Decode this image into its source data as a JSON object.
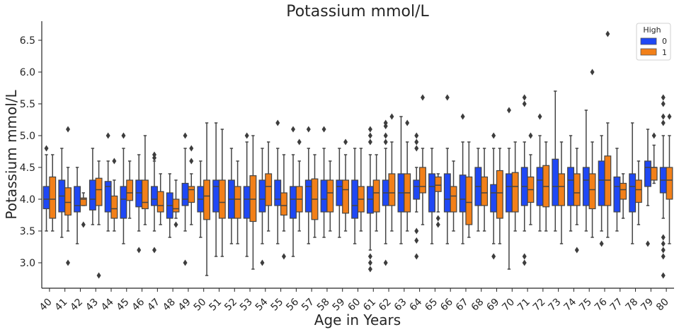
{
  "chart_data": {
    "type": "box",
    "title": "Potassium mmol/L",
    "xlabel": "Age in Years",
    "ylabel": "Potassium mmol/L",
    "ylim": [
      2.6,
      6.8
    ],
    "yticks": [
      3.0,
      3.5,
      4.0,
      4.5,
      5.0,
      5.5,
      6.0,
      6.5
    ],
    "ytick_labels": [
      "3.0",
      "3.5",
      "4.0",
      "4.5",
      "5.0",
      "5.5",
      "6.0",
      "6.5"
    ],
    "categories": [
      "40",
      "41",
      "42",
      "43",
      "44",
      "45",
      "46",
      "47",
      "48",
      "49",
      "50",
      "51",
      "52",
      "53",
      "54",
      "55",
      "56",
      "57",
      "58",
      "59",
      "60",
      "61",
      "62",
      "63",
      "64",
      "65",
      "66",
      "67",
      "68",
      "69",
      "70",
      "71",
      "72",
      "73",
      "74",
      "75",
      "76",
      "77",
      "78",
      "79",
      "80"
    ],
    "legend": {
      "title": "High",
      "position": "top-right"
    },
    "series": [
      {
        "name": "0",
        "color": "#1f48f5",
        "boxes": [
          {
            "q1": 3.85,
            "median": 4.0,
            "q3": 4.2,
            "whislo": 3.5,
            "whishi": 4.7,
            "fliers": [
              4.8
            ]
          },
          {
            "q1": 3.8,
            "median": 4.05,
            "q3": 4.3,
            "whislo": 3.4,
            "whishi": 4.8,
            "fliers": []
          },
          {
            "q1": 3.8,
            "median": 3.9,
            "q3": 4.2,
            "whislo": 3.3,
            "whishi": 4.5,
            "fliers": []
          },
          {
            "q1": 3.83,
            "median": 4.0,
            "q3": 4.3,
            "whislo": 3.6,
            "whishi": 4.8,
            "fliers": []
          },
          {
            "q1": 3.8,
            "median": 4.2,
            "q3": 4.28,
            "whislo": 3.5,
            "whishi": 4.6,
            "fliers": [
              5.0
            ]
          },
          {
            "q1": 3.7,
            "median": 4.0,
            "q3": 4.2,
            "whislo": 3.3,
            "whishi": 4.8,
            "fliers": [
              5.0
            ]
          },
          {
            "q1": 3.88,
            "median": 4.1,
            "q3": 4.3,
            "whislo": 3.5,
            "whishi": 4.7,
            "fliers": [
              3.2
            ]
          },
          {
            "q1": 3.9,
            "median": 4.0,
            "q3": 4.2,
            "whislo": 3.5,
            "whishi": 4.6,
            "fliers": [
              3.2,
              4.65,
              4.7
            ]
          },
          {
            "q1": 3.7,
            "median": 3.9,
            "q3": 4.1,
            "whislo": 3.4,
            "whishi": 4.4,
            "fliers": []
          },
          {
            "q1": 3.9,
            "median": 4.0,
            "q3": 4.25,
            "whislo": 3.5,
            "whishi": 4.8,
            "fliers": [
              3.0,
              5.0
            ]
          },
          {
            "q1": 3.8,
            "median": 4.0,
            "q3": 4.2,
            "whislo": 3.4,
            "whishi": 4.6,
            "fliers": []
          },
          {
            "q1": 3.8,
            "median": 4.2,
            "q3": 4.3,
            "whislo": 3.1,
            "whishi": 5.2,
            "fliers": []
          },
          {
            "q1": 3.7,
            "median": 4.0,
            "q3": 4.3,
            "whislo": 3.3,
            "whishi": 4.8,
            "fliers": []
          },
          {
            "q1": 3.7,
            "median": 4.0,
            "q3": 4.2,
            "whislo": 3.1,
            "whishi": 4.9,
            "fliers": [
              5.0
            ]
          },
          {
            "q1": 3.8,
            "median": 4.0,
            "q3": 4.3,
            "whislo": 3.3,
            "whishi": 4.8,
            "fliers": [
              3.0
            ]
          },
          {
            "q1": 3.9,
            "median": 4.0,
            "q3": 4.3,
            "whislo": 3.3,
            "whishi": 4.8,
            "fliers": [
              5.2
            ]
          },
          {
            "q1": 3.7,
            "median": 4.0,
            "q3": 4.2,
            "whislo": 3.1,
            "whishi": 4.7,
            "fliers": [
              5.1
            ]
          },
          {
            "q1": 3.8,
            "median": 4.2,
            "q3": 4.3,
            "whislo": 3.3,
            "whishi": 4.8,
            "fliers": [
              5.1
            ]
          },
          {
            "q1": 3.8,
            "median": 4.0,
            "q3": 4.3,
            "whislo": 3.4,
            "whishi": 4.8,
            "fliers": [
              5.1
            ]
          },
          {
            "q1": 3.9,
            "median": 4.2,
            "q3": 4.3,
            "whislo": 3.4,
            "whishi": 4.8,
            "fliers": []
          },
          {
            "q1": 3.7,
            "median": 3.9,
            "q3": 4.3,
            "whislo": 3.3,
            "whishi": 4.8,
            "fliers": []
          },
          {
            "q1": 3.78,
            "median": 4.0,
            "q3": 4.2,
            "whislo": 3.2,
            "whishi": 4.7,
            "fliers": [
              2.9,
              3.0,
              3.1,
              4.9,
              5.0,
              5.1
            ]
          },
          {
            "q1": 3.9,
            "median": 4.1,
            "q3": 4.3,
            "whislo": 3.3,
            "whishi": 4.8,
            "fliers": [
              3.0,
              4.9,
              5.0,
              5.15,
              5.2
            ]
          },
          {
            "q1": 3.8,
            "median": 4.1,
            "q3": 4.4,
            "whislo": 3.3,
            "whishi": 5.3,
            "fliers": []
          },
          {
            "q1": 4.0,
            "median": 4.2,
            "q3": 4.3,
            "whislo": 3.8,
            "whishi": 4.5,
            "fliers": [
              3.1,
              3.35,
              3.5,
              4.8,
              4.9,
              5.0
            ]
          },
          {
            "q1": 3.8,
            "median": 4.2,
            "q3": 4.4,
            "whislo": 3.3,
            "whishi": 4.8,
            "fliers": []
          },
          {
            "q1": 3.8,
            "median": 4.0,
            "q3": 4.4,
            "whislo": 3.3,
            "whishi": 4.8,
            "fliers": [
              5.6
            ]
          },
          {
            "q1": 3.8,
            "median": 4.0,
            "q3": 4.38,
            "whislo": 3.3,
            "whishi": 4.9,
            "fliers": [
              5.3
            ]
          },
          {
            "q1": 3.9,
            "median": 4.2,
            "q3": 4.5,
            "whislo": 3.5,
            "whishi": 4.8,
            "fliers": []
          },
          {
            "q1": 3.8,
            "median": 4.1,
            "q3": 4.23,
            "whislo": 3.3,
            "whishi": 4.8,
            "fliers": [
              3.1,
              5.0
            ]
          },
          {
            "q1": 3.8,
            "median": 4.2,
            "q3": 4.4,
            "whislo": 2.9,
            "whishi": 4.8,
            "fliers": [
              5.4
            ]
          },
          {
            "q1": 3.9,
            "median": 4.2,
            "q3": 4.5,
            "whislo": 3.5,
            "whishi": 4.9,
            "fliers": [
              3.0,
              3.1,
              5.5,
              5.6
            ]
          },
          {
            "q1": 3.9,
            "median": 4.3,
            "q3": 4.5,
            "whislo": 3.5,
            "whishi": 5.0,
            "fliers": [
              5.3
            ]
          },
          {
            "q1": 3.9,
            "median": 4.2,
            "q3": 4.63,
            "whislo": 3.5,
            "whishi": 5.7,
            "fliers": []
          },
          {
            "q1": 3.9,
            "median": 4.3,
            "q3": 4.5,
            "whislo": 3.5,
            "whishi": 5.0,
            "fliers": []
          },
          {
            "q1": 3.9,
            "median": 4.3,
            "q3": 4.5,
            "whislo": 3.5,
            "whishi": 5.4,
            "fliers": []
          },
          {
            "q1": 3.9,
            "median": 4.3,
            "q3": 4.6,
            "whislo": 3.5,
            "whishi": 5.0,
            "fliers": [
              3.3
            ]
          },
          {
            "q1": 3.8,
            "median": 4.2,
            "q3": 4.35,
            "whislo": 3.5,
            "whishi": 4.8,
            "fliers": []
          },
          {
            "q1": 3.8,
            "median": 4.2,
            "q3": 4.4,
            "whislo": 3.3,
            "whishi": 5.2,
            "fliers": []
          },
          {
            "q1": 4.2,
            "median": 4.5,
            "q3": 4.6,
            "whislo": 3.9,
            "whishi": 5.1,
            "fliers": [
              3.3
            ]
          },
          {
            "q1": 4.1,
            "median": 4.3,
            "q3": 4.5,
            "whislo": 3.7,
            "whishi": 5.0,
            "fliers": [
              2.8,
              3.1,
              3.2,
              3.3,
              3.4,
              5.2,
              5.3,
              5.5,
              5.6
            ]
          }
        ]
      },
      {
        "name": "1",
        "color": "#f28019",
        "boxes": [
          {
            "q1": 3.7,
            "median": 4.0,
            "q3": 4.35,
            "whislo": 3.5,
            "whishi": 4.7,
            "fliers": []
          },
          {
            "q1": 3.75,
            "median": 3.95,
            "q3": 4.18,
            "whislo": 3.5,
            "whishi": 4.5,
            "fliers": [
              3.0,
              5.1
            ]
          },
          {
            "q1": 3.9,
            "median": 4.0,
            "q3": 4.02,
            "whislo": 3.9,
            "whishi": 4.1,
            "fliers": [
              3.6
            ]
          },
          {
            "q1": 3.9,
            "median": 4.15,
            "q3": 4.33,
            "whislo": 3.6,
            "whishi": 4.6,
            "fliers": [
              2.8
            ]
          },
          {
            "q1": 3.7,
            "median": 3.85,
            "q3": 4.05,
            "whislo": 3.5,
            "whishi": 4.3,
            "fliers": [
              4.6
            ]
          },
          {
            "q1": 3.98,
            "median": 4.1,
            "q3": 4.3,
            "whislo": 3.7,
            "whishi": 4.6,
            "fliers": []
          },
          {
            "q1": 3.85,
            "median": 3.95,
            "q3": 4.3,
            "whislo": 3.6,
            "whishi": 5.0,
            "fliers": []
          },
          {
            "q1": 3.8,
            "median": 3.9,
            "q3": 4.12,
            "whislo": 3.6,
            "whishi": 4.4,
            "fliers": []
          },
          {
            "q1": 3.8,
            "median": 3.85,
            "q3": 4.0,
            "whislo": 3.7,
            "whishi": 4.3,
            "fliers": [
              3.6
            ]
          },
          {
            "q1": 3.95,
            "median": 4.15,
            "q3": 4.2,
            "whislo": 3.6,
            "whishi": 4.4,
            "fliers": [
              4.6,
              4.8
            ]
          },
          {
            "q1": 3.68,
            "median": 4.05,
            "q3": 4.3,
            "whislo": 2.8,
            "whishi": 5.2,
            "fliers": []
          },
          {
            "q1": 3.7,
            "median": 3.95,
            "q3": 4.3,
            "whislo": 3.1,
            "whishi": 5.1,
            "fliers": []
          },
          {
            "q1": 3.7,
            "median": 4.0,
            "q3": 4.2,
            "whislo": 3.3,
            "whishi": 4.6,
            "fliers": []
          },
          {
            "q1": 3.65,
            "median": 4.0,
            "q3": 4.37,
            "whislo": 2.9,
            "whishi": 5.0,
            "fliers": []
          },
          {
            "q1": 3.9,
            "median": 4.2,
            "q3": 4.4,
            "whislo": 3.5,
            "whishi": 4.9,
            "fliers": []
          },
          {
            "q1": 3.75,
            "median": 3.9,
            "q3": 4.1,
            "whislo": 3.5,
            "whishi": 4.7,
            "fliers": [
              3.1
            ]
          },
          {
            "q1": 3.8,
            "median": 4.0,
            "q3": 4.2,
            "whislo": 3.5,
            "whishi": 4.6,
            "fliers": [
              4.9
            ]
          },
          {
            "q1": 3.68,
            "median": 4.0,
            "q3": 4.32,
            "whislo": 3.4,
            "whishi": 4.7,
            "fliers": []
          },
          {
            "q1": 3.8,
            "median": 4.1,
            "q3": 4.3,
            "whislo": 3.5,
            "whishi": 4.6,
            "fliers": []
          },
          {
            "q1": 3.78,
            "median": 4.15,
            "q3": 4.3,
            "whislo": 3.5,
            "whishi": 4.7,
            "fliers": [
              4.9
            ]
          },
          {
            "q1": 3.8,
            "median": 4.0,
            "q3": 4.2,
            "whislo": 3.5,
            "whishi": 4.8,
            "fliers": []
          },
          {
            "q1": 3.8,
            "median": 4.1,
            "q3": 4.3,
            "whislo": 3.5,
            "whishi": 4.7,
            "fliers": []
          },
          {
            "q1": 3.9,
            "median": 4.1,
            "q3": 4.4,
            "whislo": 3.5,
            "whishi": 4.9,
            "fliers": [
              5.3
            ]
          },
          {
            "q1": 3.8,
            "median": 4.1,
            "q3": 4.4,
            "whislo": 3.5,
            "whishi": 4.9,
            "fliers": [
              5.2
            ]
          },
          {
            "q1": 4.1,
            "median": 4.2,
            "q3": 4.5,
            "whislo": 3.6,
            "whishi": 4.8,
            "fliers": [
              5.6
            ]
          },
          {
            "q1": 4.12,
            "median": 4.22,
            "q3": 4.35,
            "whislo": 3.8,
            "whishi": 4.4,
            "fliers": [
              3.6,
              3.7
            ]
          },
          {
            "q1": 3.8,
            "median": 4.05,
            "q3": 4.2,
            "whislo": 3.5,
            "whishi": 4.6,
            "fliers": []
          },
          {
            "q1": 3.6,
            "median": 3.95,
            "q3": 4.35,
            "whislo": 3.4,
            "whishi": 4.9,
            "fliers": []
          },
          {
            "q1": 3.9,
            "median": 4.1,
            "q3": 4.35,
            "whislo": 3.5,
            "whishi": 4.8,
            "fliers": []
          },
          {
            "q1": 3.7,
            "median": 4.1,
            "q3": 4.45,
            "whislo": 3.3,
            "whishi": 4.8,
            "fliers": []
          },
          {
            "q1": 3.8,
            "median": 4.2,
            "q3": 4.42,
            "whislo": 3.5,
            "whishi": 4.9,
            "fliers": []
          },
          {
            "q1": 3.95,
            "median": 4.15,
            "q3": 4.35,
            "whislo": 3.6,
            "whishi": 4.7,
            "fliers": [
              5.0
            ]
          },
          {
            "q1": 3.88,
            "median": 4.2,
            "q3": 4.53,
            "whislo": 3.5,
            "whishi": 4.9,
            "fliers": []
          },
          {
            "q1": 3.9,
            "median": 4.2,
            "q3": 4.4,
            "whislo": 3.3,
            "whishi": 4.9,
            "fliers": []
          },
          {
            "q1": 3.9,
            "median": 4.1,
            "q3": 4.4,
            "whislo": 3.6,
            "whishi": 4.8,
            "fliers": [
              3.2
            ]
          },
          {
            "q1": 3.85,
            "median": 4.15,
            "q3": 4.4,
            "whislo": 3.4,
            "whishi": 4.9,
            "fliers": [
              6.0
            ]
          },
          {
            "q1": 3.9,
            "median": 4.3,
            "q3": 4.68,
            "whislo": 3.4,
            "whishi": 5.2,
            "fliers": [
              6.6
            ]
          },
          {
            "q1": 4.0,
            "median": 4.15,
            "q3": 4.25,
            "whislo": 3.7,
            "whishi": 4.4,
            "fliers": []
          },
          {
            "q1": 3.95,
            "median": 4.15,
            "q3": 4.3,
            "whislo": 3.6,
            "whishi": 4.6,
            "fliers": []
          },
          {
            "q1": 4.3,
            "median": 4.5,
            "q3": 4.5,
            "whislo": 4.25,
            "whishi": 4.85,
            "fliers": [
              5.0
            ]
          },
          {
            "q1": 4.0,
            "median": 4.3,
            "q3": 4.5,
            "whislo": 3.3,
            "whishi": 5.0,
            "fliers": [
              5.3
            ]
          }
        ]
      }
    ]
  }
}
